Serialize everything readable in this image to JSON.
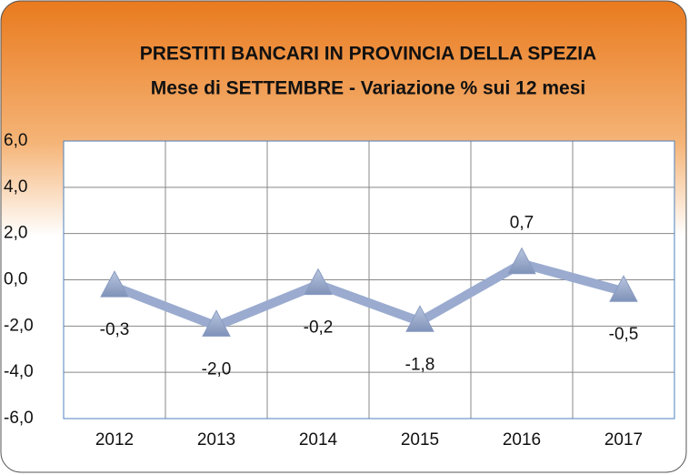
{
  "chart_data": {
    "type": "line",
    "title": "PRESTITI BANCARI IN PROVINCIA DELLA SPEZIA",
    "subtitle": "Mese di SETTEMBRE  - Variazione % sui 12 mesi",
    "categories": [
      "2012",
      "2013",
      "2014",
      "2015",
      "2016",
      "2017"
    ],
    "values": [
      -0.3,
      -2.0,
      -0.2,
      -1.8,
      0.7,
      -0.5
    ],
    "value_labels": [
      "-0,3",
      "-2,0",
      "-0,2",
      "-1,8",
      "0,7",
      "-0,5"
    ],
    "color": "#9aabcf",
    "ylim": [
      -6,
      6
    ],
    "yticks": [
      {
        "value": -6,
        "label": "-6,0"
      },
      {
        "value": -4,
        "label": "-4,0"
      },
      {
        "value": -2,
        "label": "-2,0"
      },
      {
        "value": 0,
        "label": "0,0"
      },
      {
        "value": 2,
        "label": "2,0"
      },
      {
        "value": 4,
        "label": "4,0"
      },
      {
        "value": 6,
        "label": "6,0"
      }
    ],
    "grid": true
  }
}
